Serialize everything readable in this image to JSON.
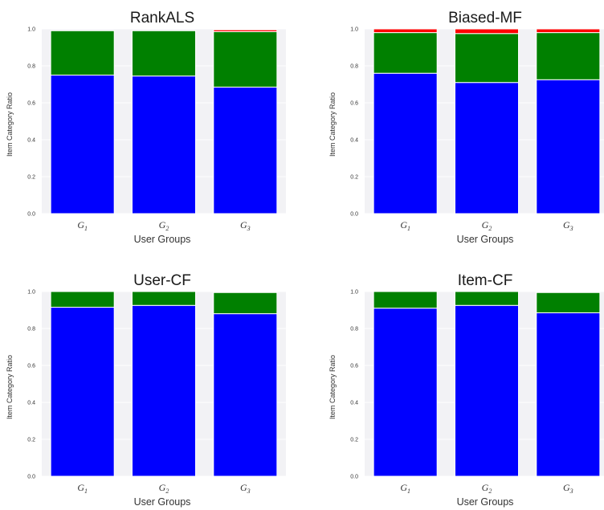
{
  "chart_data": [
    {
      "type": "bar",
      "stacked": true,
      "title": "RankALS",
      "xlabel": "User Groups",
      "ylabel": "Item Category Ratio",
      "categories": [
        [
          "G",
          "1"
        ],
        [
          "G",
          "2"
        ],
        [
          "G",
          "3"
        ]
      ],
      "ylim": [
        0,
        1.0
      ],
      "yticks": [
        "0.0",
        "0.2",
        "0.4",
        "0.6",
        "0.8",
        "1.0"
      ],
      "series": [
        {
          "color": "#0000ff",
          "values": [
            0.75,
            0.745,
            0.685
          ]
        },
        {
          "color": "#008000",
          "values": [
            0.24,
            0.245,
            0.3
          ]
        },
        {
          "color": "#ff0000",
          "values": [
            0.0,
            0.0,
            0.01
          ]
        }
      ]
    },
    {
      "type": "bar",
      "stacked": true,
      "title": "Biased-MF",
      "xlabel": "User Groups",
      "ylabel": "Item Category Ratio",
      "categories": [
        [
          "G",
          "1"
        ],
        [
          "G",
          "2"
        ],
        [
          "G",
          "3"
        ]
      ],
      "ylim": [
        0,
        1.0
      ],
      "yticks": [
        "0.0",
        "0.2",
        "0.4",
        "0.6",
        "0.8",
        "1.0"
      ],
      "series": [
        {
          "color": "#0000ff",
          "values": [
            0.76,
            0.71,
            0.725
          ]
        },
        {
          "color": "#008000",
          "values": [
            0.22,
            0.265,
            0.255
          ]
        },
        {
          "color": "#ff0000",
          "values": [
            0.02,
            0.025,
            0.02
          ]
        }
      ]
    },
    {
      "type": "bar",
      "stacked": true,
      "title": "User-CF",
      "xlabel": "User Groups",
      "ylabel": "Item Category Ratio",
      "categories": [
        [
          "G",
          "1"
        ],
        [
          "G",
          "2"
        ],
        [
          "G",
          "3"
        ]
      ],
      "ylim": [
        0,
        1.0
      ],
      "yticks": [
        "0.0",
        "0.2",
        "0.4",
        "0.6",
        "0.8",
        "1.0"
      ],
      "series": [
        {
          "color": "#0000ff",
          "values": [
            0.915,
            0.925,
            0.88
          ]
        },
        {
          "color": "#008000",
          "values": [
            0.085,
            0.075,
            0.115
          ]
        },
        {
          "color": "#ff0000",
          "values": [
            0.0,
            0.0,
            0.003
          ]
        }
      ]
    },
    {
      "type": "bar",
      "stacked": true,
      "title": "Item-CF",
      "xlabel": "User Groups",
      "ylabel": "Item Category Ratio",
      "categories": [
        [
          "G",
          "1"
        ],
        [
          "G",
          "2"
        ],
        [
          "G",
          "3"
        ]
      ],
      "ylim": [
        0,
        1.0
      ],
      "yticks": [
        "0.0",
        "0.2",
        "0.4",
        "0.6",
        "0.8",
        "1.0"
      ],
      "series": [
        {
          "color": "#0000ff",
          "values": [
            0.91,
            0.925,
            0.885
          ]
        },
        {
          "color": "#008000",
          "values": [
            0.09,
            0.075,
            0.11
          ]
        },
        {
          "color": "#ff0000",
          "values": [
            0.0,
            0.0,
            0.003
          ]
        }
      ]
    }
  ],
  "colors": {
    "plot_background": "#f2f2f5",
    "bar_edge": "#ffffff"
  }
}
